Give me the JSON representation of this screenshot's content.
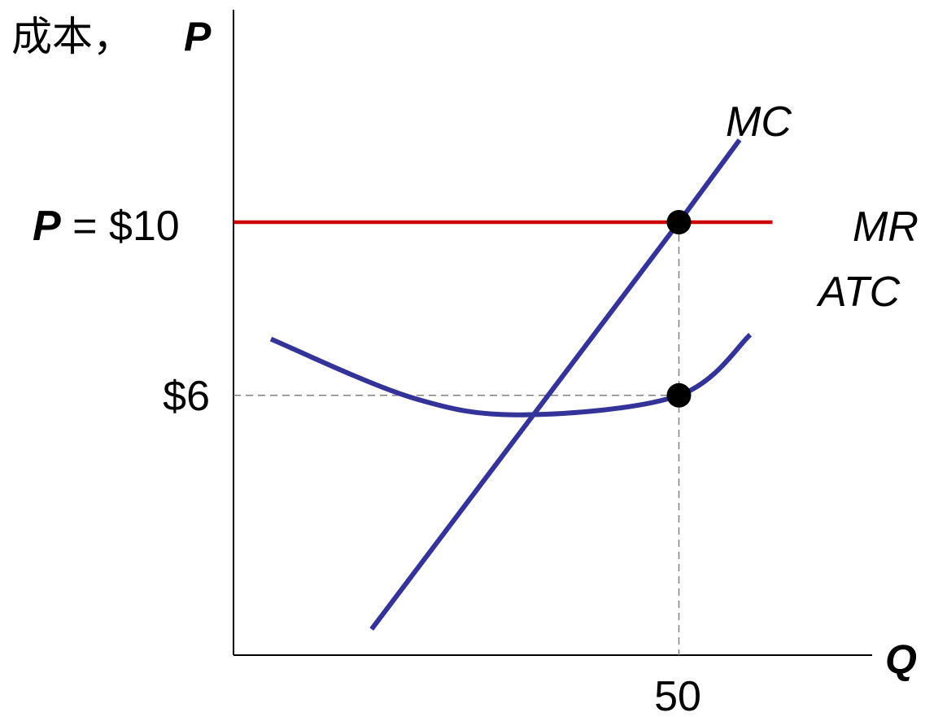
{
  "chart_data": {
    "type": "line",
    "y_axis_prefix": "成本，",
    "y_axis_symbol": "P",
    "x_axis_symbol": "Q",
    "price_label": {
      "symbol": "P",
      "equals": " = ",
      "value_text": "$10"
    },
    "tick_labels": {
      "atc_level": "$6",
      "quantity": "50"
    },
    "xlim": [
      0,
      72
    ],
    "ylim": [
      0,
      15.2
    ],
    "series": [
      {
        "name": "MC",
        "color": "#333399",
        "x": [
          15.5,
          50,
          56.8
        ],
        "y": [
          0.6,
          10,
          11.9
        ]
      },
      {
        "name": "MR",
        "color": "#cc0000",
        "x": [
          0,
          50,
          60.5
        ],
        "y": [
          10,
          10,
          10
        ]
      },
      {
        "name": "ATC",
        "color": "#333399",
        "x": [
          4.2,
          20,
          32.5,
          50,
          58
        ],
        "y": [
          7.3,
          5.95,
          5.55,
          6,
          7.4
        ]
      }
    ],
    "points": [
      {
        "x": 50,
        "y": 10
      },
      {
        "x": 50,
        "y": 6
      }
    ],
    "guide_color": "#808080",
    "axis_color": "#000000"
  }
}
